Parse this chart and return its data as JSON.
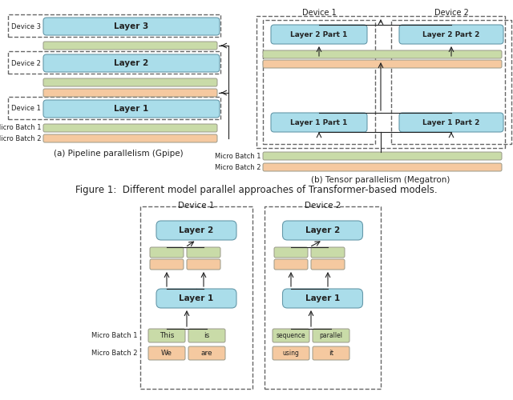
{
  "fig_width": 6.4,
  "fig_height": 5.0,
  "bg_color": "#ffffff",
  "cyan_color": "#aaddea",
  "green_color": "#c9dba8",
  "orange_color": "#f5c9a0",
  "text_color": "#222222",
  "caption_a": "(a) Pipeline parallelism (Gpipe)",
  "caption_b": "(b) Tensor parallelism (Megatron)",
  "fig_caption": "Figure 1:  Different model parallel approaches of Transformer-based models."
}
